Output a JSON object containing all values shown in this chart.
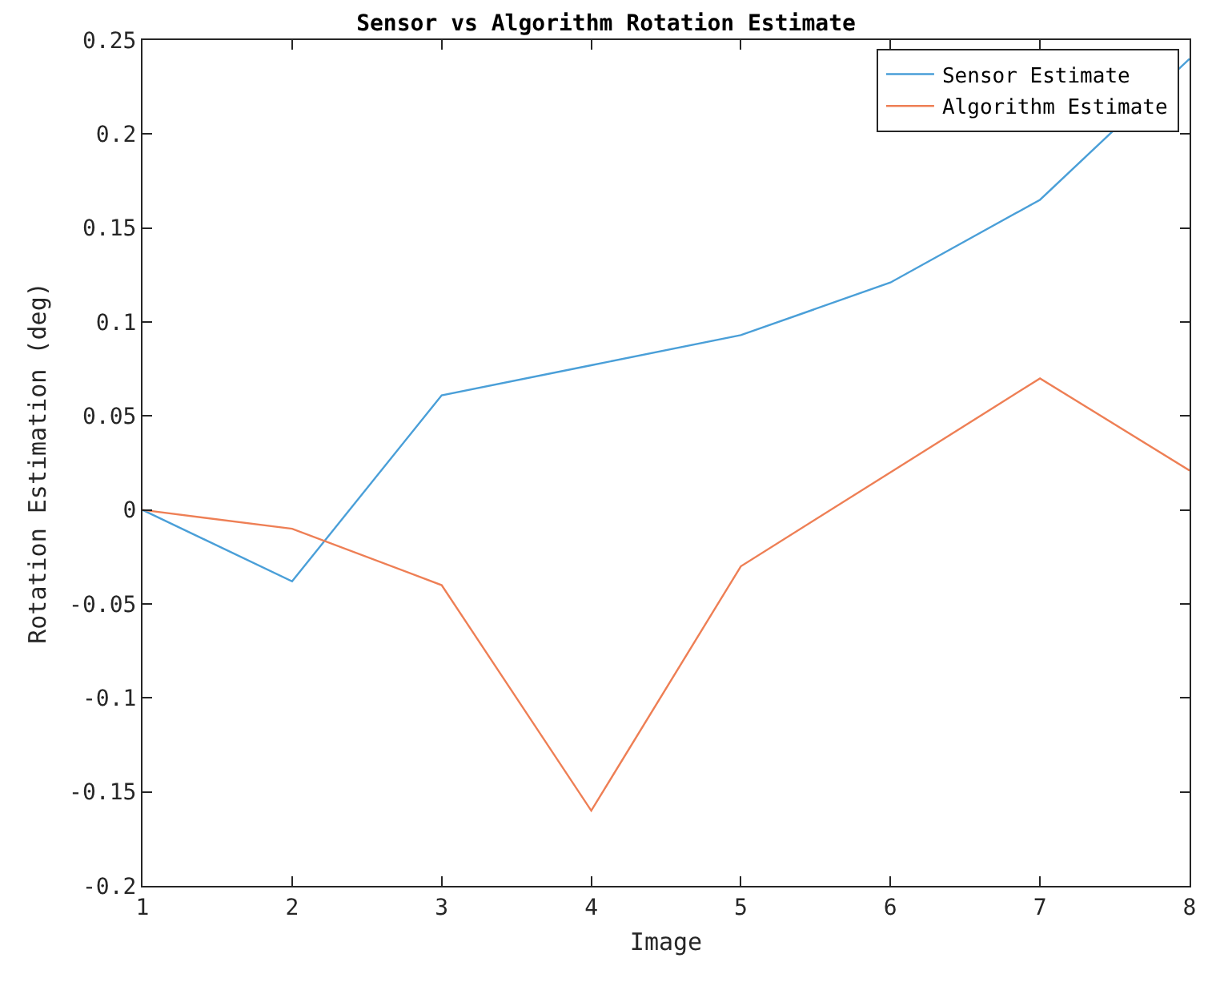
{
  "chart_data": {
    "type": "line",
    "title": "Sensor vs Algorithm Rotation Estimate",
    "xlabel": "Image",
    "ylabel": "Rotation Estimation (deg)",
    "x": [
      1,
      2,
      3,
      4,
      5,
      6,
      7,
      8
    ],
    "series": [
      {
        "name": "Sensor Estimate",
        "color": "#4a9fd8",
        "values": [
          0,
          -0.038,
          0.061,
          0.077,
          0.093,
          0.121,
          0.165,
          0.24
        ]
      },
      {
        "name": "Algorithm Estimate",
        "color": "#ee7f55",
        "values": [
          0,
          -0.01,
          -0.04,
          -0.16,
          -0.03,
          0.02,
          0.07,
          0.021
        ]
      }
    ],
    "xlim": [
      1,
      8
    ],
    "xticks": [
      1,
      2,
      3,
      4,
      5,
      6,
      7,
      8
    ],
    "ylim": [
      -0.2,
      0.25
    ],
    "yticks": [
      -0.2,
      -0.15,
      -0.1,
      -0.05,
      0,
      0.05,
      0.1,
      0.15,
      0.2,
      0.25
    ],
    "grid": false,
    "legend": "top right",
    "marker": "none",
    "line_style": "solid"
  }
}
